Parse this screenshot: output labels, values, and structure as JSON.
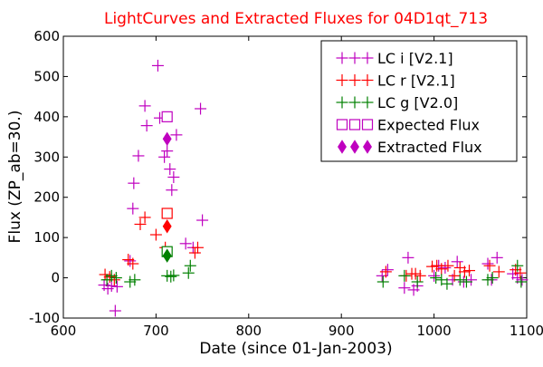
{
  "chart_data": {
    "type": "scatter",
    "title": "LightCurves and Extracted Fluxes for 04D1qt_713",
    "title_color": "#ff0000",
    "xlabel": "Date (since 01-Jan-2003)",
    "ylabel": "Flux (ZP_ab=30.)",
    "xlim": [
      600,
      1100
    ],
    "ylim": [
      -100,
      600
    ],
    "xticks": [
      600,
      700,
      800,
      900,
      1000,
      1100
    ],
    "yticks": [
      -100,
      0,
      100,
      200,
      300,
      400,
      500,
      600
    ],
    "grid": false,
    "legend_position": "top-right",
    "series": [
      {
        "name": "LC i [V2.1]",
        "marker": "plus",
        "color": "#bf00bf",
        "points": [
          [
            644,
            -18
          ],
          [
            648,
            -27
          ],
          [
            652,
            -20
          ],
          [
            656,
            -82
          ],
          [
            658,
            -22
          ],
          [
            672,
            42
          ],
          [
            675,
            172
          ],
          [
            676,
            235
          ],
          [
            681,
            303
          ],
          [
            688,
            427
          ],
          [
            690,
            378
          ],
          [
            702,
            527
          ],
          [
            704,
            397
          ],
          [
            709,
            300
          ],
          [
            712,
            315
          ],
          [
            715,
            270
          ],
          [
            717,
            218
          ],
          [
            719,
            250
          ],
          [
            722,
            355
          ],
          [
            732,
            85
          ],
          [
            740,
            75
          ],
          [
            748,
            420
          ],
          [
            750,
            143
          ],
          [
            944,
            5
          ],
          [
            950,
            20
          ],
          [
            968,
            -25
          ],
          [
            972,
            50
          ],
          [
            978,
            -30
          ],
          [
            982,
            -20
          ],
          [
            1000,
            5
          ],
          [
            1005,
            30
          ],
          [
            1012,
            25
          ],
          [
            1020,
            -5
          ],
          [
            1025,
            40
          ],
          [
            1032,
            -10
          ],
          [
            1040,
            -5
          ],
          [
            1058,
            35
          ],
          [
            1062,
            -5
          ],
          [
            1068,
            50
          ],
          [
            1085,
            10
          ],
          [
            1090,
            0
          ],
          [
            1095,
            -5
          ]
        ]
      },
      {
        "name": "LC r [V2.1]",
        "marker": "plus",
        "color": "#ff0000",
        "points": [
          [
            645,
            8
          ],
          [
            650,
            2
          ],
          [
            655,
            -5
          ],
          [
            670,
            45
          ],
          [
            675,
            35
          ],
          [
            683,
            133
          ],
          [
            688,
            150
          ],
          [
            700,
            107
          ],
          [
            710,
            75
          ],
          [
            742,
            62
          ],
          [
            745,
            75
          ],
          [
            948,
            15
          ],
          [
            970,
            5
          ],
          [
            976,
            10
          ],
          [
            980,
            10
          ],
          [
            985,
            5
          ],
          [
            998,
            28
          ],
          [
            1003,
            30
          ],
          [
            1008,
            22
          ],
          [
            1015,
            30
          ],
          [
            1022,
            5
          ],
          [
            1028,
            25
          ],
          [
            1033,
            15
          ],
          [
            1038,
            18
          ],
          [
            1060,
            30
          ],
          [
            1070,
            15
          ],
          [
            1088,
            20
          ],
          [
            1093,
            12
          ]
        ]
      },
      {
        "name": "LC g [V2.0]",
        "marker": "plus",
        "color": "#008000",
        "points": [
          [
            647,
            -5
          ],
          [
            652,
            5
          ],
          [
            657,
            0
          ],
          [
            672,
            -10
          ],
          [
            677,
            -5
          ],
          [
            712,
            5
          ],
          [
            716,
            3
          ],
          [
            719,
            6
          ],
          [
            735,
            12
          ],
          [
            737,
            30
          ],
          [
            945,
            -10
          ],
          [
            968,
            5
          ],
          [
            982,
            -10
          ],
          [
            1002,
            0
          ],
          [
            1008,
            -5
          ],
          [
            1014,
            -15
          ],
          [
            1028,
            -5
          ],
          [
            1035,
            -10
          ],
          [
            1058,
            -5
          ],
          [
            1063,
            0
          ],
          [
            1090,
            30
          ],
          [
            1094,
            -10
          ]
        ]
      },
      {
        "name": "Expected Flux",
        "marker": "square-open",
        "color": "#bf00bf",
        "points": [
          [
            712,
            400
          ],
          [
            712,
            160
          ],
          [
            712,
            65
          ]
        ],
        "point_colors": [
          "#bf00bf",
          "#ff0000",
          "#008000"
        ]
      },
      {
        "name": "Extracted Flux",
        "marker": "diamond-filled",
        "color": "#bf00bf",
        "points": [
          [
            712,
            345
          ],
          [
            712,
            128
          ],
          [
            712,
            55
          ]
        ],
        "point_colors": [
          "#bf00bf",
          "#ff0000",
          "#008000"
        ]
      }
    ]
  }
}
